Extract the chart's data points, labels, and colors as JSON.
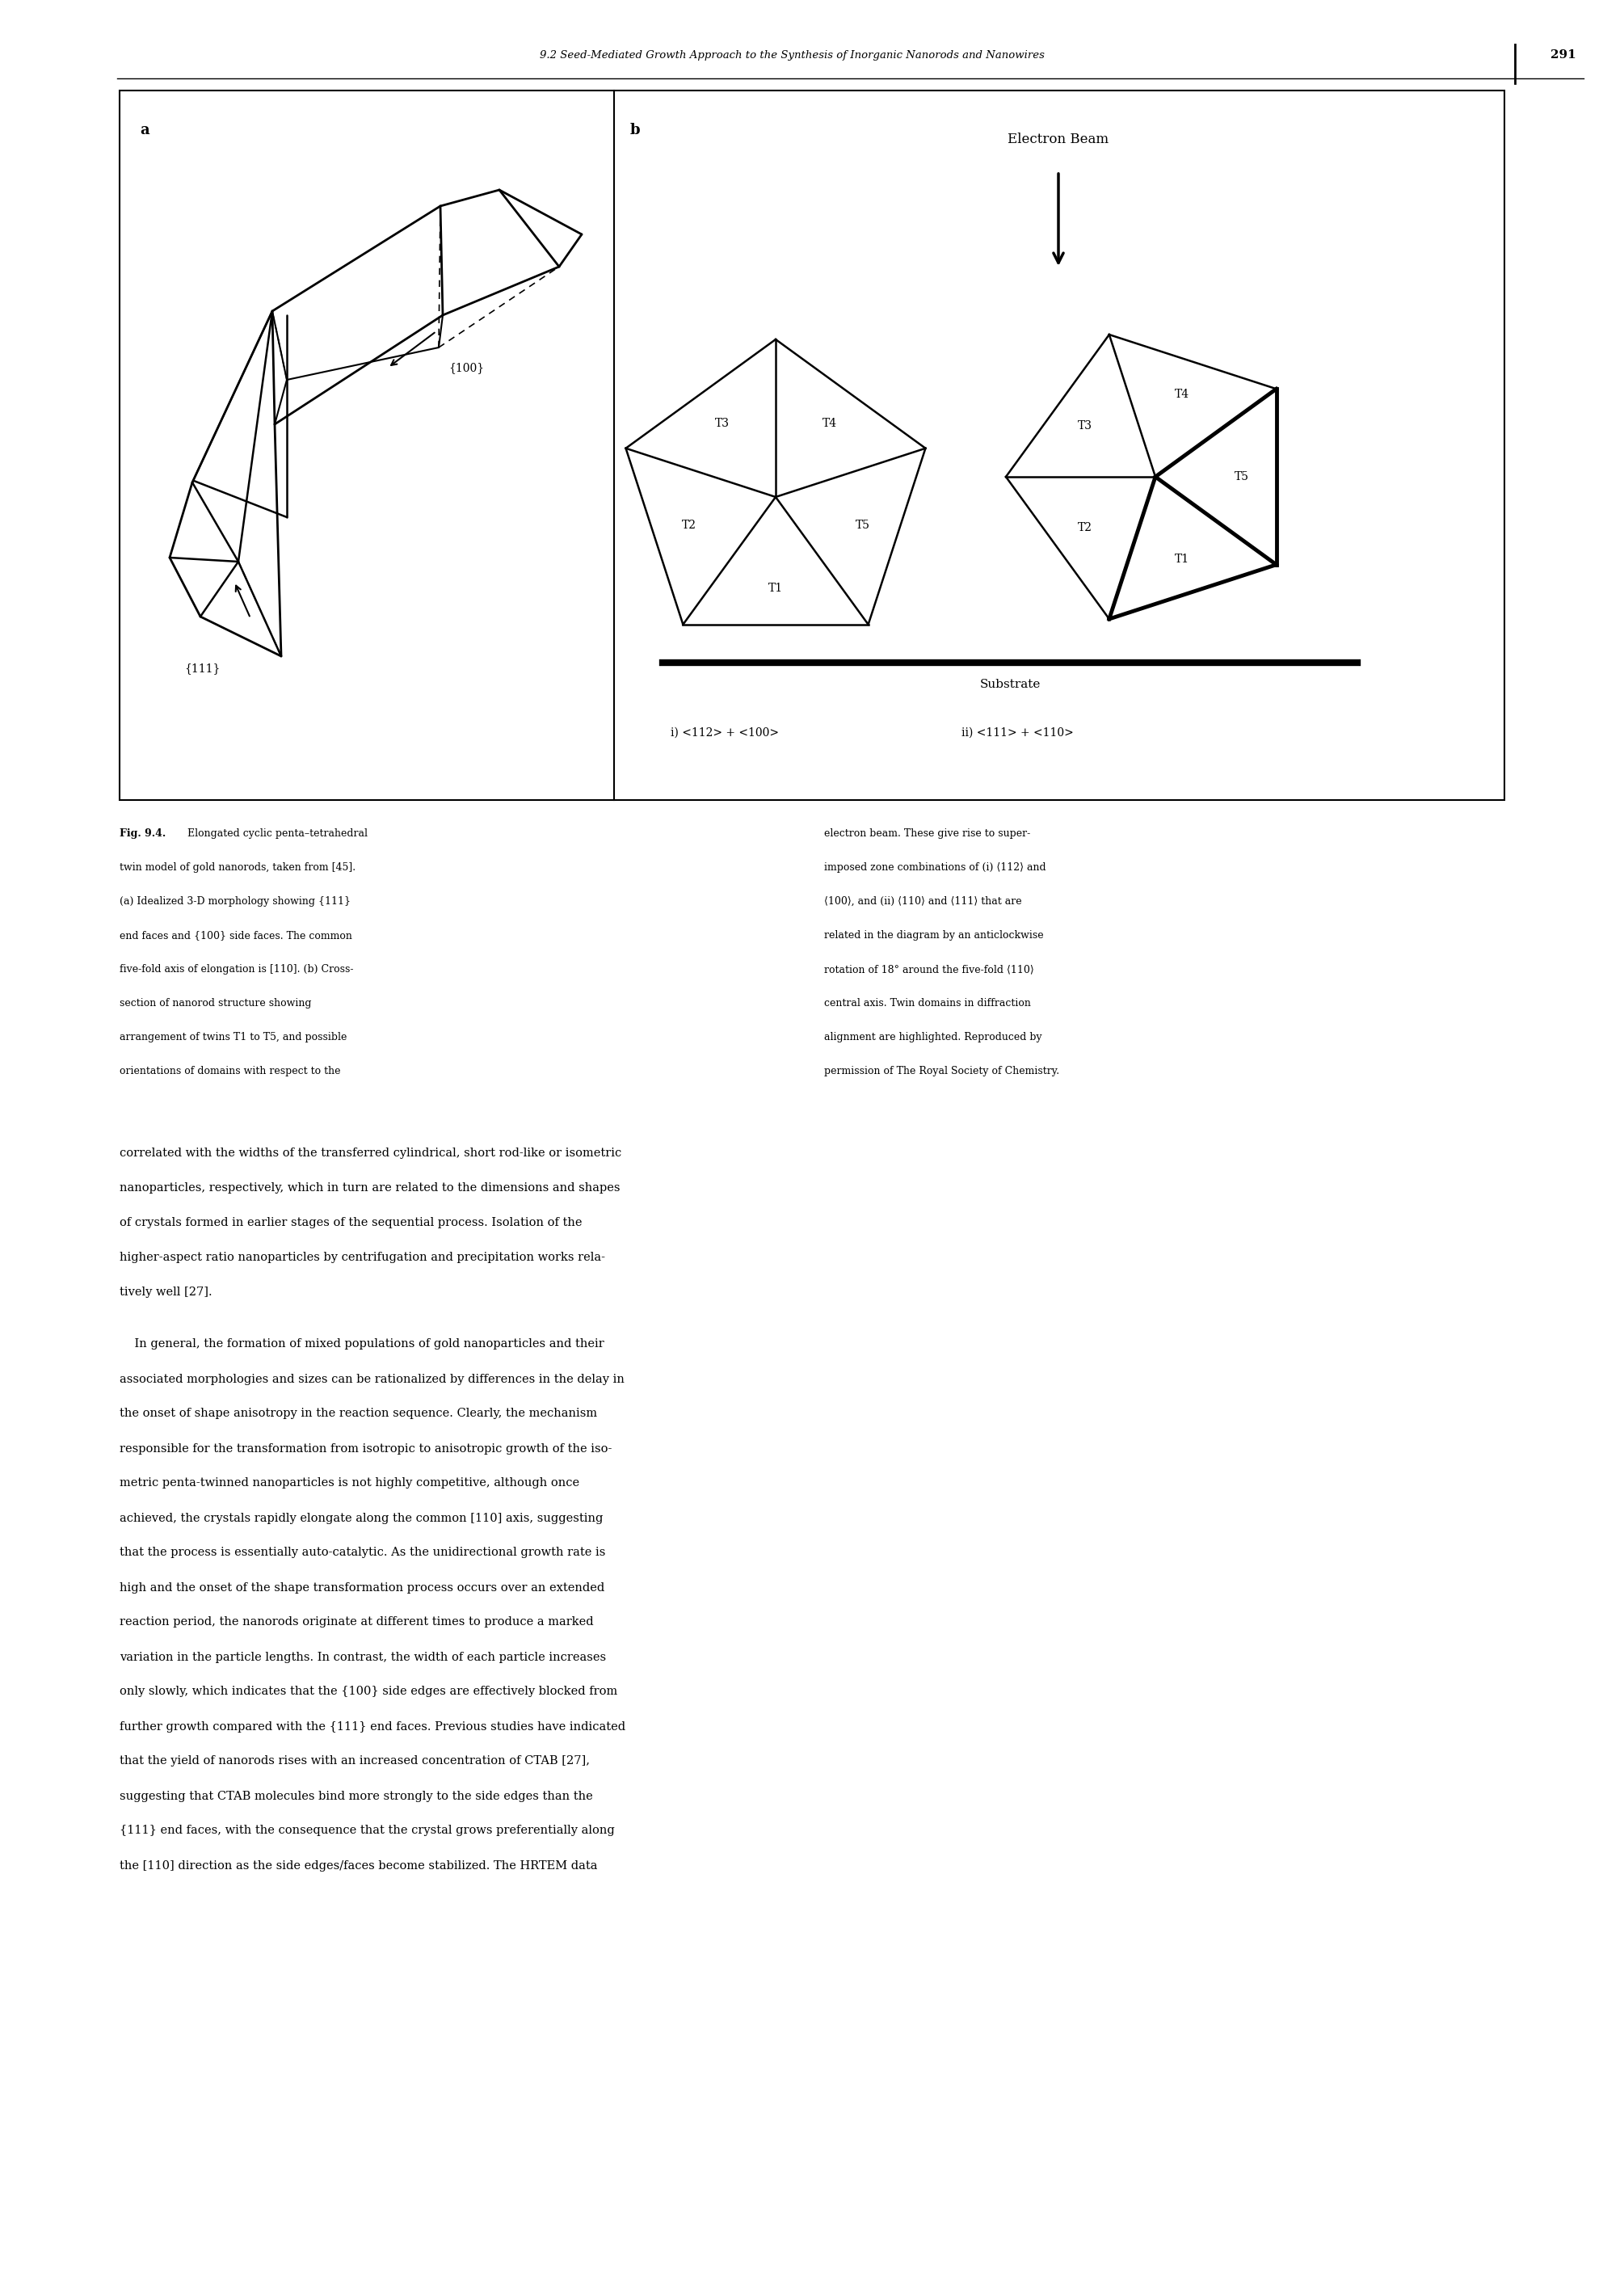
{
  "header_text": "9.2 Seed-Mediated Growth Approach to the Synthesis of Inorganic Nanorods and Nanowires",
  "page_number": "291",
  "electron_beam_label": "Electron Beam",
  "substrate_label": "Substrate",
  "label_i": "i) <112> + <100>",
  "label_ii": "ii) <111> + <110>",
  "face_100": "{100}",
  "face_111": "{111}",
  "cap_lines_left": [
    "Fig. 9.4.   Elongated cyclic penta–tetrahedral",
    "twin model of gold nanorods, taken from [45].",
    "(a) Idealized 3-D morphology showing {111}",
    "end faces and {100} side faces. The common",
    "five-fold axis of elongation is [110]. (b) Cross-",
    "section of nanorod structure showing",
    "arrangement of twins T1 to T5, and possible",
    "orientations of domains with respect to the"
  ],
  "cap_lines_right": [
    "electron beam. These give rise to super-",
    "imposed zone combinations of (i) ⟨112⟩ and",
    "⟨100⟩, and (ii) ⟨110⟩ and ⟨111⟩ that are",
    "related in the diagram by an anticlockwise",
    "rotation of 18° around the five-fold ⟨110⟩",
    "central axis. Twin domains in diffraction",
    "alignment are highlighted. Reproduced by",
    "permission of The Royal Society of Chemistry."
  ],
  "body_text": [
    "correlated with the widths of the transferred cylindrical, short rod-like or isometric",
    "nanoparticles, respectively, which in turn are related to the dimensions and shapes",
    "of crystals formed in earlier stages of the sequential process. Isolation of the",
    "higher-aspect ratio nanoparticles by centrifugation and precipitation works rela-",
    "tively well [27].",
    "",
    "    In general, the formation of mixed populations of gold nanoparticles and their",
    "associated morphologies and sizes can be rationalized by differences in the delay in",
    "the onset of shape anisotropy in the reaction sequence. Clearly, the mechanism",
    "responsible for the transformation from isotropic to anisotropic growth of the iso-",
    "metric penta-twinned nanoparticles is not highly competitive, although once",
    "achieved, the crystals rapidly elongate along the common [110] axis, suggesting",
    "that the process is essentially auto-catalytic. As the unidirectional growth rate is",
    "high and the onset of the shape transformation process occurs over an extended",
    "reaction period, the nanorods originate at different times to produce a marked",
    "variation in the particle lengths. In contrast, the width of each particle increases",
    "only slowly, which indicates that the {100} side edges are effectively blocked from",
    "further growth compared with the {111} end faces. Previous studies have indicated",
    "that the yield of nanorods rises with an increased concentration of CTAB [27],",
    "suggesting that CTAB molecules bind more strongly to the side edges than the",
    "{111} end faces, with the consequence that the crystal grows preferentially along",
    "the [110] direction as the side edges/faces become stabilized. The HRTEM data"
  ],
  "bg_color": "#ffffff",
  "page_width": 20.1,
  "page_height": 28.35
}
